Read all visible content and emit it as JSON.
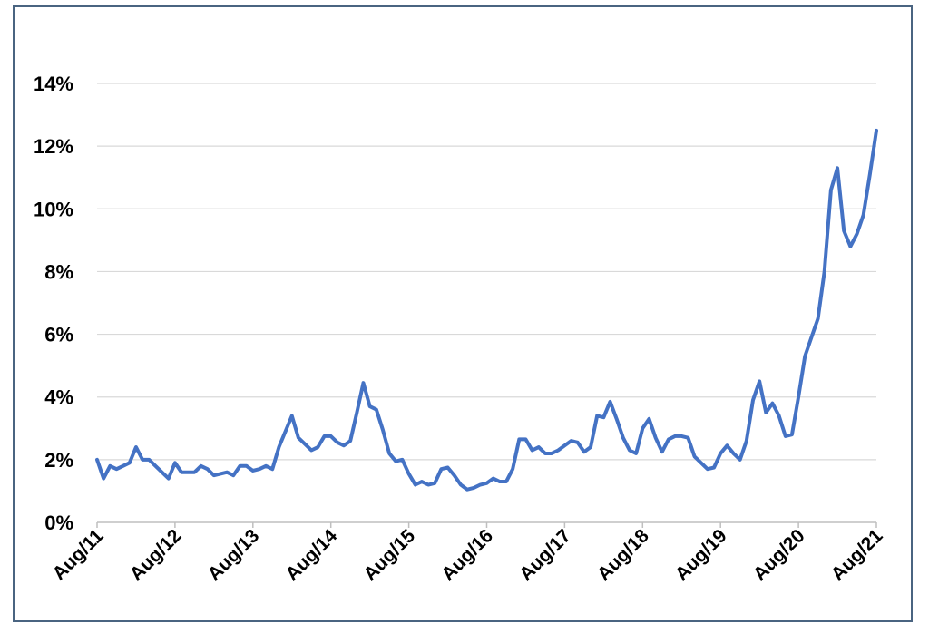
{
  "chart_data": {
    "type": "line",
    "title": "",
    "xlabel": "",
    "ylabel": "",
    "ylim": [
      0,
      14
    ],
    "yticks": [
      0,
      2,
      4,
      6,
      8,
      10,
      12,
      14
    ],
    "ytick_labels": [
      "0%",
      "2%",
      "4%",
      "6%",
      "8%",
      "10%",
      "12%",
      "14%"
    ],
    "xtick_labels": [
      "Aug/11",
      "Aug/12",
      "Aug/13",
      "Aug/14",
      "Aug/15",
      "Aug/16",
      "Aug/17",
      "Aug/18",
      "Aug/19",
      "Aug/20",
      "Aug/21"
    ],
    "grid": true,
    "legend": "none",
    "x": [
      "Aug/11",
      "Sep/11",
      "Oct/11",
      "Nov/11",
      "Dec/11",
      "Jan/12",
      "Feb/12",
      "Mar/12",
      "Apr/12",
      "May/12",
      "Jun/12",
      "Jul/12",
      "Aug/12",
      "Sep/12",
      "Oct/12",
      "Nov/12",
      "Dec/12",
      "Jan/13",
      "Feb/13",
      "Mar/13",
      "Apr/13",
      "May/13",
      "Jun/13",
      "Jul/13",
      "Aug/13",
      "Sep/13",
      "Oct/13",
      "Nov/13",
      "Dec/13",
      "Jan/14",
      "Feb/14",
      "Mar/14",
      "Apr/14",
      "May/14",
      "Jun/14",
      "Jul/14",
      "Aug/14",
      "Sep/14",
      "Oct/14",
      "Nov/14",
      "Dec/14",
      "Jan/15",
      "Feb/15",
      "Mar/15",
      "Apr/15",
      "May/15",
      "Jun/15",
      "Jul/15",
      "Aug/15",
      "Sep/15",
      "Oct/15",
      "Nov/15",
      "Dec/15",
      "Jan/16",
      "Feb/16",
      "Mar/16",
      "Apr/16",
      "May/16",
      "Jun/16",
      "Jul/16",
      "Aug/16",
      "Sep/16",
      "Oct/16",
      "Nov/16",
      "Dec/16",
      "Jan/17",
      "Feb/17",
      "Mar/17",
      "Apr/17",
      "May/17",
      "Jun/17",
      "Jul/17",
      "Aug/17",
      "Sep/17",
      "Oct/17",
      "Nov/17",
      "Dec/17",
      "Jan/18",
      "Feb/18",
      "Mar/18",
      "Apr/18",
      "May/18",
      "Jun/18",
      "Jul/18",
      "Aug/18",
      "Sep/18",
      "Oct/18",
      "Nov/18",
      "Dec/18",
      "Jan/19",
      "Feb/19",
      "Mar/19",
      "Apr/19",
      "May/19",
      "Jun/19",
      "Jul/19",
      "Aug/19",
      "Sep/19",
      "Oct/19",
      "Nov/19",
      "Dec/19",
      "Jan/20",
      "Feb/20",
      "Mar/20",
      "Apr/20",
      "May/20",
      "Jun/20",
      "Jul/20",
      "Aug/20",
      "Sep/20",
      "Oct/20",
      "Nov/20",
      "Dec/20",
      "Jan/21",
      "Feb/21",
      "Mar/21",
      "Apr/21",
      "May/21",
      "Jun/21",
      "Jul/21",
      "Aug/21"
    ],
    "series": [
      {
        "color": "#4472c4",
        "values": [
          2.0,
          1.4,
          1.8,
          1.7,
          1.8,
          1.9,
          2.4,
          2.0,
          2.0,
          1.8,
          1.6,
          1.4,
          1.9,
          1.6,
          1.6,
          1.6,
          1.8,
          1.7,
          1.5,
          1.55,
          1.6,
          1.5,
          1.8,
          1.8,
          1.65,
          1.7,
          1.8,
          1.7,
          2.4,
          2.9,
          3.4,
          2.7,
          2.5,
          2.3,
          2.4,
          2.75,
          2.75,
          2.55,
          2.45,
          2.6,
          3.5,
          4.45,
          3.7,
          3.6,
          2.95,
          2.2,
          1.95,
          2.0,
          1.55,
          1.2,
          1.3,
          1.2,
          1.25,
          1.7,
          1.75,
          1.5,
          1.2,
          1.05,
          1.1,
          1.2,
          1.25,
          1.4,
          1.3,
          1.3,
          1.7,
          2.65,
          2.65,
          2.3,
          2.4,
          2.2,
          2.2,
          2.3,
          2.45,
          2.6,
          2.55,
          2.25,
          2.4,
          3.4,
          3.35,
          3.85,
          3.3,
          2.7,
          2.3,
          2.2,
          3.0,
          3.3,
          2.7,
          2.25,
          2.65,
          2.75,
          2.75,
          2.7,
          2.1,
          1.9,
          1.7,
          1.75,
          2.2,
          2.45,
          2.2,
          2.0,
          2.6,
          3.9,
          4.5,
          3.5,
          3.8,
          3.4,
          2.75,
          2.8,
          4.0,
          5.3,
          5.9,
          6.5,
          8.0,
          10.6,
          11.3,
          9.3,
          8.8,
          9.2,
          9.8,
          11.1,
          12.5
        ]
      }
    ]
  }
}
